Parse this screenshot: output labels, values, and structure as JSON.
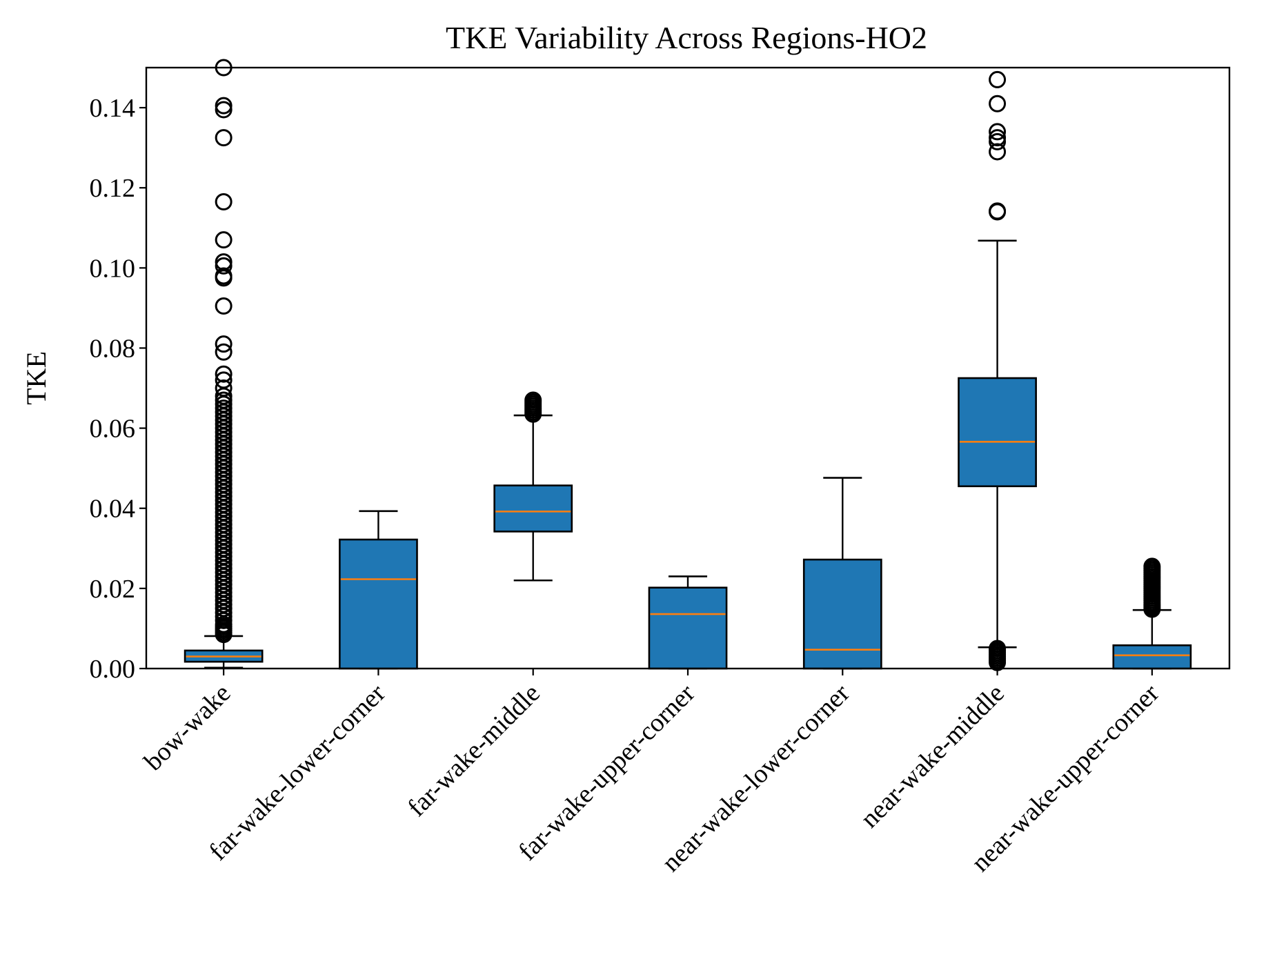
{
  "chart_data": {
    "type": "boxplot",
    "title": "TKE Variability Across Regions-HO2",
    "xlabel": "",
    "ylabel": "TKE",
    "ylim": [
      0,
      0.15
    ],
    "yticks": [
      "0.00",
      "0.02",
      "0.04",
      "0.06",
      "0.08",
      "0.10",
      "0.12",
      "0.14"
    ],
    "grid": false,
    "box_color": "#1f77b4",
    "median_color": "#ff7f0e",
    "categories": [
      "bow-wake",
      "far-wake-lower-corner",
      "far-wake-middle",
      "far-wake-upper-corner",
      "near-wake-lower-corner",
      "near-wake-middle",
      "near-wake-upper-corner"
    ],
    "boxes": [
      {
        "whisker_low": 0.0002,
        "q1": 0.0017,
        "median": 0.003,
        "q3": 0.0045,
        "whisker_high": 0.0081,
        "outliers": [
          0.0085,
          0.009,
          0.0095,
          0.01,
          0.0105,
          0.011,
          0.012,
          0.013,
          0.014,
          0.015,
          0.016,
          0.017,
          0.018,
          0.019,
          0.02,
          0.021,
          0.022,
          0.023,
          0.024,
          0.025,
          0.026,
          0.027,
          0.028,
          0.029,
          0.03,
          0.031,
          0.032,
          0.033,
          0.034,
          0.035,
          0.036,
          0.037,
          0.038,
          0.039,
          0.04,
          0.041,
          0.042,
          0.043,
          0.044,
          0.045,
          0.046,
          0.047,
          0.048,
          0.049,
          0.05,
          0.051,
          0.052,
          0.053,
          0.054,
          0.055,
          0.056,
          0.057,
          0.058,
          0.059,
          0.06,
          0.061,
          0.062,
          0.063,
          0.064,
          0.065,
          0.066,
          0.067,
          0.068,
          0.07,
          0.072,
          0.0735,
          0.079,
          0.081,
          0.0905,
          0.0975,
          0.098,
          0.1005,
          0.1015,
          0.107,
          0.1165,
          0.1325,
          0.1395,
          0.1405,
          0.15
        ]
      },
      {
        "whisker_low": 0.0,
        "q1": 0.0,
        "median": 0.0223,
        "q3": 0.0322,
        "whisker_high": 0.0393,
        "outliers": []
      },
      {
        "whisker_low": 0.022,
        "q1": 0.0342,
        "median": 0.0392,
        "q3": 0.0457,
        "whisker_high": 0.0632,
        "outliers": [
          0.0635,
          0.064,
          0.0645,
          0.065,
          0.0655,
          0.066,
          0.0665,
          0.067
        ]
      },
      {
        "whisker_low": 0.0,
        "q1": 0.0,
        "median": 0.0136,
        "q3": 0.0202,
        "whisker_high": 0.023,
        "outliers": []
      },
      {
        "whisker_low": 0.0,
        "q1": 0.0,
        "median": 0.0047,
        "q3": 0.0272,
        "whisker_high": 0.0476,
        "outliers": []
      },
      {
        "whisker_low": 0.0053,
        "q1": 0.0455,
        "median": 0.0566,
        "q3": 0.0725,
        "whisker_high": 0.1068,
        "outliers": [
          0.0015,
          0.002,
          0.0025,
          0.003,
          0.0035,
          0.004,
          0.0045,
          0.005,
          0.114,
          0.1142,
          0.129,
          0.1315,
          0.1325,
          0.134,
          0.141,
          0.147
        ]
      },
      {
        "whisker_low": 0.0,
        "q1": 0.0,
        "median": 0.0033,
        "q3": 0.0058,
        "whisker_high": 0.0146,
        "outliers": [
          0.0148,
          0.0152,
          0.0156,
          0.016,
          0.0165,
          0.017,
          0.0175,
          0.018,
          0.0185,
          0.019,
          0.0195,
          0.02,
          0.0205,
          0.021,
          0.0215,
          0.022,
          0.0225,
          0.023,
          0.0235,
          0.024,
          0.0245,
          0.025,
          0.0255
        ]
      }
    ]
  }
}
